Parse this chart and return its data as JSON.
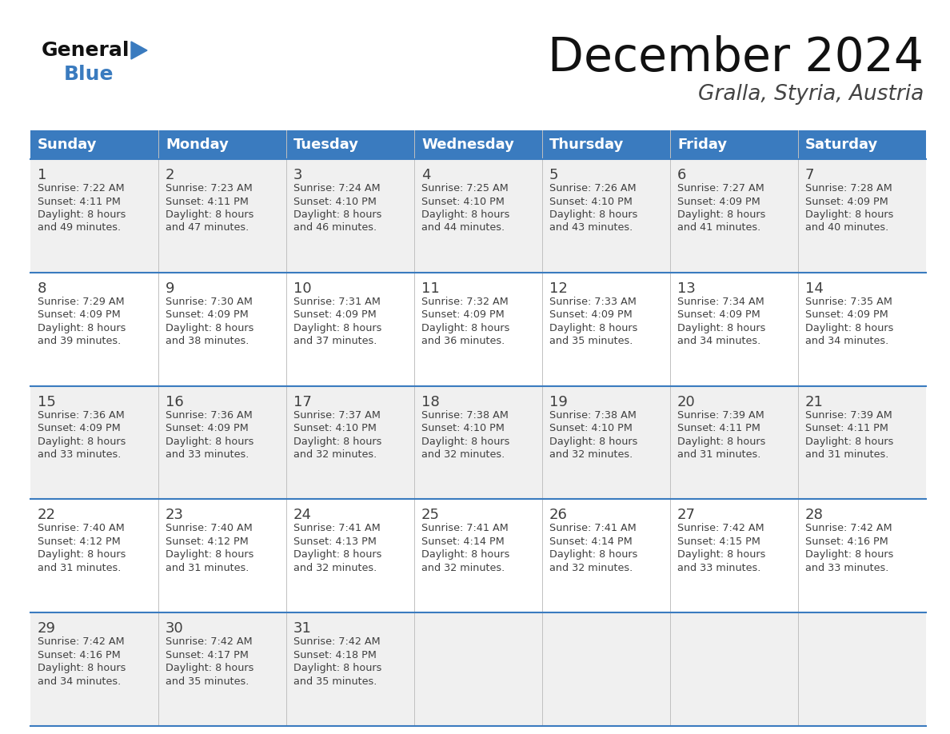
{
  "title": "December 2024",
  "subtitle": "Gralla, Styria, Austria",
  "days_of_week": [
    "Sunday",
    "Monday",
    "Tuesday",
    "Wednesday",
    "Thursday",
    "Friday",
    "Saturday"
  ],
  "header_bg": "#3a7bbf",
  "header_text": "#ffffff",
  "row_bg_even": "#f0f0f0",
  "row_bg_odd": "#ffffff",
  "border_color": "#3a7bbf",
  "text_color": "#404040",
  "title_color": "#111111",
  "subtitle_color": "#444444",
  "logo_general_color": "#111111",
  "logo_blue_color": "#3a7bbf",
  "logo_triangle_color": "#3a7bbf",
  "calendar_data": [
    [
      {
        "day": 1,
        "sunrise": "7:22 AM",
        "sunset": "4:11 PM",
        "daylight_m": 49
      },
      {
        "day": 2,
        "sunrise": "7:23 AM",
        "sunset": "4:11 PM",
        "daylight_m": 47
      },
      {
        "day": 3,
        "sunrise": "7:24 AM",
        "sunset": "4:10 PM",
        "daylight_m": 46
      },
      {
        "day": 4,
        "sunrise": "7:25 AM",
        "sunset": "4:10 PM",
        "daylight_m": 44
      },
      {
        "day": 5,
        "sunrise": "7:26 AM",
        "sunset": "4:10 PM",
        "daylight_m": 43
      },
      {
        "day": 6,
        "sunrise": "7:27 AM",
        "sunset": "4:09 PM",
        "daylight_m": 41
      },
      {
        "day": 7,
        "sunrise": "7:28 AM",
        "sunset": "4:09 PM",
        "daylight_m": 40
      }
    ],
    [
      {
        "day": 8,
        "sunrise": "7:29 AM",
        "sunset": "4:09 PM",
        "daylight_m": 39
      },
      {
        "day": 9,
        "sunrise": "7:30 AM",
        "sunset": "4:09 PM",
        "daylight_m": 38
      },
      {
        "day": 10,
        "sunrise": "7:31 AM",
        "sunset": "4:09 PM",
        "daylight_m": 37
      },
      {
        "day": 11,
        "sunrise": "7:32 AM",
        "sunset": "4:09 PM",
        "daylight_m": 36
      },
      {
        "day": 12,
        "sunrise": "7:33 AM",
        "sunset": "4:09 PM",
        "daylight_m": 35
      },
      {
        "day": 13,
        "sunrise": "7:34 AM",
        "sunset": "4:09 PM",
        "daylight_m": 34
      },
      {
        "day": 14,
        "sunrise": "7:35 AM",
        "sunset": "4:09 PM",
        "daylight_m": 34
      }
    ],
    [
      {
        "day": 15,
        "sunrise": "7:36 AM",
        "sunset": "4:09 PM",
        "daylight_m": 33
      },
      {
        "day": 16,
        "sunrise": "7:36 AM",
        "sunset": "4:09 PM",
        "daylight_m": 33
      },
      {
        "day": 17,
        "sunrise": "7:37 AM",
        "sunset": "4:10 PM",
        "daylight_m": 32
      },
      {
        "day": 18,
        "sunrise": "7:38 AM",
        "sunset": "4:10 PM",
        "daylight_m": 32
      },
      {
        "day": 19,
        "sunrise": "7:38 AM",
        "sunset": "4:10 PM",
        "daylight_m": 32
      },
      {
        "day": 20,
        "sunrise": "7:39 AM",
        "sunset": "4:11 PM",
        "daylight_m": 31
      },
      {
        "day": 21,
        "sunrise": "7:39 AM",
        "sunset": "4:11 PM",
        "daylight_m": 31
      }
    ],
    [
      {
        "day": 22,
        "sunrise": "7:40 AM",
        "sunset": "4:12 PM",
        "daylight_m": 31
      },
      {
        "day": 23,
        "sunrise": "7:40 AM",
        "sunset": "4:12 PM",
        "daylight_m": 31
      },
      {
        "day": 24,
        "sunrise": "7:41 AM",
        "sunset": "4:13 PM",
        "daylight_m": 32
      },
      {
        "day": 25,
        "sunrise": "7:41 AM",
        "sunset": "4:14 PM",
        "daylight_m": 32
      },
      {
        "day": 26,
        "sunrise": "7:41 AM",
        "sunset": "4:14 PM",
        "daylight_m": 32
      },
      {
        "day": 27,
        "sunrise": "7:42 AM",
        "sunset": "4:15 PM",
        "daylight_m": 33
      },
      {
        "day": 28,
        "sunrise": "7:42 AM",
        "sunset": "4:16 PM",
        "daylight_m": 33
      }
    ],
    [
      {
        "day": 29,
        "sunrise": "7:42 AM",
        "sunset": "4:16 PM",
        "daylight_m": 34
      },
      {
        "day": 30,
        "sunrise": "7:42 AM",
        "sunset": "4:17 PM",
        "daylight_m": 35
      },
      {
        "day": 31,
        "sunrise": "7:42 AM",
        "sunset": "4:18 PM",
        "daylight_m": 35
      },
      null,
      null,
      null,
      null
    ]
  ]
}
